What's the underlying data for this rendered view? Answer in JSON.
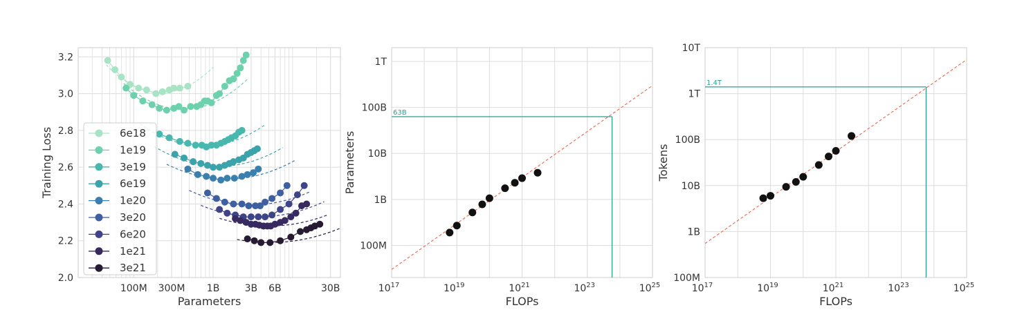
{
  "colors": {
    "grid": "#dddddd",
    "frame": "#cccccc",
    "fit": "#e8684f",
    "opt": "#2a9d8f",
    "point": "#111111",
    "series": [
      "#a9e3c5",
      "#6ed1ad",
      "#48b7ae",
      "#3ba3aa",
      "#3a7fae",
      "#3e5fa0",
      "#3f4488",
      "#372a5e",
      "#271a33"
    ]
  },
  "chart_data": [
    {
      "type": "line",
      "xscale": "log",
      "xlabel": "Parameters",
      "ylabel": "Training Loss",
      "xlim": [
        20000000,
        40000000000
      ],
      "ylim": [
        2.0,
        3.25
      ],
      "xticks": [
        {
          "v": 100000000,
          "label": "100M"
        },
        {
          "v": 300000000,
          "label": "300M"
        },
        {
          "v": 1000000000,
          "label": "1B"
        },
        {
          "v": 3000000000,
          "label": "3B"
        },
        {
          "v": 6000000000,
          "label": "6B"
        },
        {
          "v": 30000000000,
          "label": "30B"
        }
      ],
      "yticks": [
        {
          "v": 2.0,
          "label": "2.0"
        },
        {
          "v": 2.2,
          "label": "2.2"
        },
        {
          "v": 2.4,
          "label": "2.4"
        },
        {
          "v": 2.6,
          "label": "2.6"
        },
        {
          "v": 2.8,
          "label": "2.8"
        },
        {
          "v": 3.0,
          "label": "3.0"
        },
        {
          "v": 3.2,
          "label": "3.2"
        }
      ],
      "grid": true,
      "legend_position": "left",
      "series": [
        {
          "name": "6e18",
          "points": [
            [
              47000000,
              3.18
            ],
            [
              58000000,
              3.13
            ],
            [
              70000000,
              3.09
            ],
            [
              90000000,
              3.05
            ],
            [
              115000000,
              3.03
            ],
            [
              145000000,
              3.02
            ],
            [
              190000000,
              3.0
            ],
            [
              230000000,
              3.01
            ],
            [
              280000000,
              3.02
            ],
            [
              320000000,
              3.03
            ],
            [
              380000000,
              3.03
            ],
            [
              480000000,
              3.04
            ]
          ],
          "fit": {
            "min": 220000000,
            "min_loss": 3.005,
            "k": 0.32,
            "from": 45000000,
            "to": 1000000000
          }
        },
        {
          "name": "1e19",
          "points": [
            [
              80000000,
              3.03
            ],
            [
              100000000,
              2.99
            ],
            [
              130000000,
              2.96
            ],
            [
              170000000,
              2.94
            ],
            [
              210000000,
              2.92
            ],
            [
              260000000,
              2.91
            ],
            [
              320000000,
              2.92
            ],
            [
              370000000,
              2.93
            ],
            [
              430000000,
              2.91
            ],
            [
              520000000,
              2.93
            ],
            [
              620000000,
              2.93
            ],
            [
              700000000,
              2.94
            ],
            [
              780000000,
              2.96
            ],
            [
              850000000,
              2.96
            ],
            [
              950000000,
              2.95
            ],
            [
              1100000000,
              2.99
            ],
            [
              1200000000,
              3.0
            ],
            [
              1400000000,
              3.04
            ],
            [
              1600000000,
              3.07
            ],
            [
              1800000000,
              3.08
            ],
            [
              2000000000,
              3.11
            ],
            [
              2200000000,
              3.14
            ],
            [
              2400000000,
              3.18
            ],
            [
              2600000000,
              3.21
            ]
          ],
          "fit": {
            "min": 420000000,
            "min_loss": 2.915,
            "k": 0.25,
            "from": 75000000,
            "to": 2800000000
          }
        },
        {
          "name": "3e19",
          "points": [
            [
              210000000,
              2.78
            ],
            [
              280000000,
              2.76
            ],
            [
              380000000,
              2.74
            ],
            [
              480000000,
              2.73
            ],
            [
              600000000,
              2.72
            ],
            [
              720000000,
              2.72
            ],
            [
              820000000,
              2.71
            ],
            [
              950000000,
              2.72
            ],
            [
              1100000000,
              2.72
            ],
            [
              1250000000,
              2.73
            ],
            [
              1400000000,
              2.74
            ],
            [
              1550000000,
              2.75
            ],
            [
              1700000000,
              2.76
            ],
            [
              1900000000,
              2.77
            ],
            [
              2100000000,
              2.79
            ],
            [
              2300000000,
              2.8
            ]
          ],
          "fit": {
            "min": 750000000,
            "min_loss": 2.715,
            "k": 0.19,
            "from": 120000000,
            "to": 4500000000
          }
        },
        {
          "name": "6e19",
          "points": [
            [
              330000000,
              2.67
            ],
            [
              430000000,
              2.65
            ],
            [
              560000000,
              2.63
            ],
            [
              700000000,
              2.62
            ],
            [
              850000000,
              2.61
            ],
            [
              1000000000,
              2.6
            ],
            [
              1200000000,
              2.6
            ],
            [
              1400000000,
              2.61
            ],
            [
              1600000000,
              2.62
            ],
            [
              1800000000,
              2.63
            ],
            [
              2100000000,
              2.64
            ],
            [
              2400000000,
              2.65
            ],
            [
              2700000000,
              2.67
            ],
            [
              3000000000,
              2.68
            ],
            [
              3300000000,
              2.69
            ],
            [
              3600000000,
              2.7
            ]
          ],
          "fit": {
            "min": 1200000000,
            "min_loss": 2.605,
            "k": 0.16,
            "from": 180000000,
            "to": 7500000000
          }
        },
        {
          "name": "1e20",
          "points": [
            [
              480000000,
              2.59
            ],
            [
              640000000,
              2.56
            ],
            [
              820000000,
              2.55
            ],
            [
              1000000000,
              2.54
            ],
            [
              1250000000,
              2.53
            ],
            [
              1500000000,
              2.54
            ],
            [
              1850000000,
              2.54
            ],
            [
              2300000000,
              2.55
            ],
            [
              2700000000,
              2.56
            ],
            [
              3200000000,
              2.57
            ],
            [
              3700000000,
              2.59
            ]
          ],
          "fit": {
            "min": 1500000000,
            "min_loss": 2.535,
            "k": 0.14,
            "from": 260000000,
            "to": 11000000000
          }
        },
        {
          "name": "3e20",
          "points": [
            [
              850000000,
              2.46
            ],
            [
              1100000000,
              2.43
            ],
            [
              1400000000,
              2.41
            ],
            [
              1800000000,
              2.4
            ],
            [
              2300000000,
              2.4
            ],
            [
              2800000000,
              2.39
            ],
            [
              3400000000,
              2.39
            ],
            [
              3900000000,
              2.39
            ],
            [
              4500000000,
              2.41
            ],
            [
              5500000000,
              2.43
            ],
            [
              7000000000,
              2.46
            ],
            [
              8500000000,
              2.5
            ]
          ],
          "fit": {
            "min": 3000000000,
            "min_loss": 2.395,
            "k": 0.13,
            "from": 500000000,
            "to": 17000000000
          }
        },
        {
          "name": "6e20",
          "points": [
            [
              1200000000,
              2.37
            ],
            [
              1500000000,
              2.35
            ],
            [
              1900000000,
              2.34
            ],
            [
              2400000000,
              2.33
            ],
            [
              3000000000,
              2.33
            ],
            [
              3700000000,
              2.33
            ],
            [
              4500000000,
              2.33
            ],
            [
              5500000000,
              2.34
            ],
            [
              7000000000,
              2.37
            ],
            [
              9000000000,
              2.4
            ],
            [
              11500000000,
              2.45
            ],
            [
              14000000000,
              2.5
            ]
          ],
          "fit": {
            "min": 3700000000,
            "min_loss": 2.33,
            "k": 0.12,
            "from": 700000000,
            "to": 25000000000
          }
        },
        {
          "name": "1e21",
          "points": [
            [
              1900000000,
              2.32
            ],
            [
              2200000000,
              2.31
            ],
            [
              2600000000,
              2.3
            ],
            [
              3000000000,
              2.29
            ],
            [
              3400000000,
              2.29
            ],
            [
              3800000000,
              2.285
            ],
            [
              4300000000,
              2.28
            ],
            [
              4800000000,
              2.28
            ],
            [
              5300000000,
              2.28
            ],
            [
              6000000000,
              2.29
            ],
            [
              7000000000,
              2.3
            ],
            [
              8000000000,
              2.31
            ],
            [
              9500000000,
              2.33
            ],
            [
              11000000000,
              2.35
            ],
            [
              13000000000,
              2.39
            ],
            [
              15000000000,
              2.4
            ]
          ],
          "fit": {
            "min": 5000000000,
            "min_loss": 2.28,
            "k": 0.11,
            "from": 1200000000,
            "to": 28000000000
          }
        },
        {
          "name": "3e21",
          "points": [
            [
              2700000000,
              2.21
            ],
            [
              3300000000,
              2.2
            ],
            [
              4000000000,
              2.19
            ],
            [
              5200000000,
              2.19
            ],
            [
              7000000000,
              2.2
            ],
            [
              9500000000,
              2.22
            ],
            [
              12500000000,
              2.25
            ],
            [
              15000000000,
              2.26
            ],
            [
              17000000000,
              2.27
            ],
            [
              19000000000,
              2.28
            ],
            [
              22000000000,
              2.29
            ]
          ],
          "fit": {
            "min": 5200000000,
            "min_loss": 2.19,
            "k": 0.1,
            "from": 2000000000,
            "to": 40000000000
          }
        }
      ]
    },
    {
      "type": "scatter",
      "xscale": "log",
      "yscale": "log",
      "xlabel": "FLOPs",
      "ylabel": "Parameters",
      "xlim": [
        1e+17,
        1e+25
      ],
      "ylim": [
        20000000,
        2000000000000
      ],
      "xticks": [
        {
          "v": 1e+17,
          "base": "10",
          "exp": "17"
        },
        {
          "v": 1e+19,
          "base": "10",
          "exp": "19"
        },
        {
          "v": 1e+21,
          "base": "10",
          "exp": "21"
        },
        {
          "v": 1e+23,
          "base": "10",
          "exp": "23"
        },
        {
          "v": 1e+25,
          "base": "10",
          "exp": "25"
        }
      ],
      "yticks": [
        {
          "v": 100000000,
          "label": "100M"
        },
        {
          "v": 1000000000,
          "label": "1B"
        },
        {
          "v": 10000000000,
          "label": "10B"
        },
        {
          "v": 100000000000,
          "label": "100B"
        },
        {
          "v": 1000000000000,
          "label": "1T"
        }
      ],
      "grid": true,
      "points": [
        [
          6e+18,
          190000000
        ],
        [
          1e+19,
          270000000
        ],
        [
          3e+19,
          520000000
        ],
        [
          6e+19,
          780000000
        ],
        [
          1e+20,
          1060000000
        ],
        [
          3e+20,
          1750000000
        ],
        [
          6e+20,
          2300000000
        ],
        [
          1e+21,
          2900000000
        ],
        [
          3e+21,
          3800000000
        ]
      ],
      "fit": {
        "x0": 1e+17,
        "y0": 30000000,
        "slope": 0.5
      },
      "optimal": {
        "x": 5.76e+23,
        "y": 63000000000,
        "label": "63B"
      }
    },
    {
      "type": "scatter",
      "xscale": "log",
      "yscale": "log",
      "xlabel": "FLOPs",
      "ylabel": "Tokens",
      "xlim": [
        1e+17,
        1e+25
      ],
      "ylim": [
        100000000,
        10000000000000
      ],
      "xticks": [
        {
          "v": 1e+17,
          "base": "10",
          "exp": "17"
        },
        {
          "v": 1e+19,
          "base": "10",
          "exp": "19"
        },
        {
          "v": 1e+21,
          "base": "10",
          "exp": "21"
        },
        {
          "v": 1e+23,
          "base": "10",
          "exp": "23"
        },
        {
          "v": 1e+25,
          "base": "10",
          "exp": "25"
        }
      ],
      "yticks": [
        {
          "v": 100000000,
          "label": "100M"
        },
        {
          "v": 1000000000,
          "label": "1B"
        },
        {
          "v": 10000000000,
          "label": "10B"
        },
        {
          "v": 100000000000,
          "label": "100B"
        },
        {
          "v": 1000000000000,
          "label": "1T"
        },
        {
          "v": 10000000000000,
          "label": "10T"
        }
      ],
      "grid": true,
      "points": [
        [
          6e+18,
          5300000000
        ],
        [
          1e+19,
          6000000000
        ],
        [
          3e+19,
          9400000000
        ],
        [
          6e+19,
          12000000000
        ],
        [
          1e+20,
          15500000000
        ],
        [
          3e+20,
          28000000000
        ],
        [
          6e+20,
          43000000000
        ],
        [
          1e+21,
          57000000000
        ],
        [
          3e+21,
          120000000000
        ]
      ],
      "fit": {
        "x0": 1e+17,
        "y0": 550000000,
        "slope": 0.5
      },
      "optimal": {
        "x": 5.76e+23,
        "y": 1400000000000,
        "label": "1.4T"
      }
    }
  ]
}
